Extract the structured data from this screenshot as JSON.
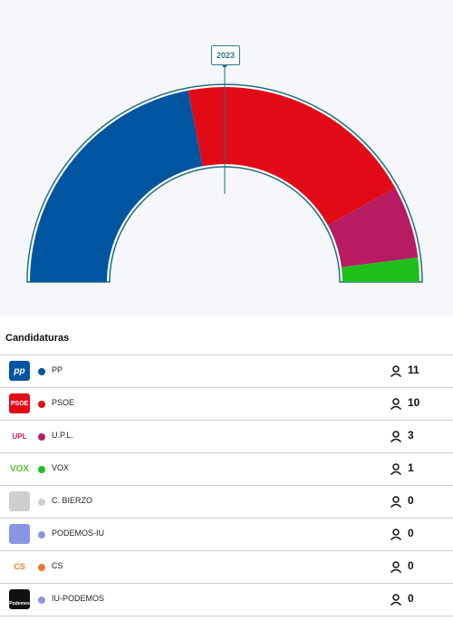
{
  "header": {
    "year": "2023"
  },
  "table": {
    "title": "Candidaturas"
  },
  "chart_data": {
    "type": "hemicycle",
    "year": "2023",
    "total_seats": 25,
    "parties": [
      {
        "name": "PP",
        "seats": 11,
        "color": "#0055a0"
      },
      {
        "name": "PSOE",
        "seats": 10,
        "color": "#e30a18"
      },
      {
        "name": "U.P.L.",
        "seats": 3,
        "color": "#b71c63"
      },
      {
        "name": "VOX",
        "seats": 1,
        "color": "#1dbf1d"
      },
      {
        "name": "C. BIERZO",
        "seats": 0,
        "color": "#cfcfcf"
      },
      {
        "name": "PODEMOS-IU",
        "seats": 0,
        "color": "#8a96e3"
      },
      {
        "name": "CS",
        "seats": 0,
        "color": "#ef7a2e"
      },
      {
        "name": "IU-PODEMOS",
        "seats": 0,
        "color": "#8a96e3"
      }
    ]
  },
  "parties": [
    {
      "name": "PP",
      "seats": "11",
      "color": "#0055a0",
      "logo_text": "pp",
      "logo_icon": "pp-logo"
    },
    {
      "name": "PSOE",
      "seats": "10",
      "color": "#e30a18",
      "logo_text": "PSOE",
      "logo_icon": "psoe-logo"
    },
    {
      "name": "U.P.L.",
      "seats": "3",
      "color": "#b71c63",
      "logo_text": "UPL",
      "logo_icon": "upl-logo"
    },
    {
      "name": "VOX",
      "seats": "1",
      "color": "#1dbf1d",
      "logo_text": "VOX",
      "logo_icon": "vox-logo"
    },
    {
      "name": "C. BIERZO",
      "seats": "0",
      "color": "#cfcfcf",
      "logo_text": "",
      "logo_icon": "c-bierzo-logo"
    },
    {
      "name": "PODEMOS-IU",
      "seats": "0",
      "color": "#8a96e3",
      "logo_text": "",
      "logo_icon": "podemos-iu-logo"
    },
    {
      "name": "CS",
      "seats": "0",
      "color": "#ef7a2e",
      "logo_text": "CS",
      "logo_icon": "cs-logo"
    },
    {
      "name": "IU-PODEMOS",
      "seats": "0",
      "color": "#8a96e3",
      "logo_text": "Podemos",
      "logo_icon": "iu-podemos-logo"
    }
  ]
}
